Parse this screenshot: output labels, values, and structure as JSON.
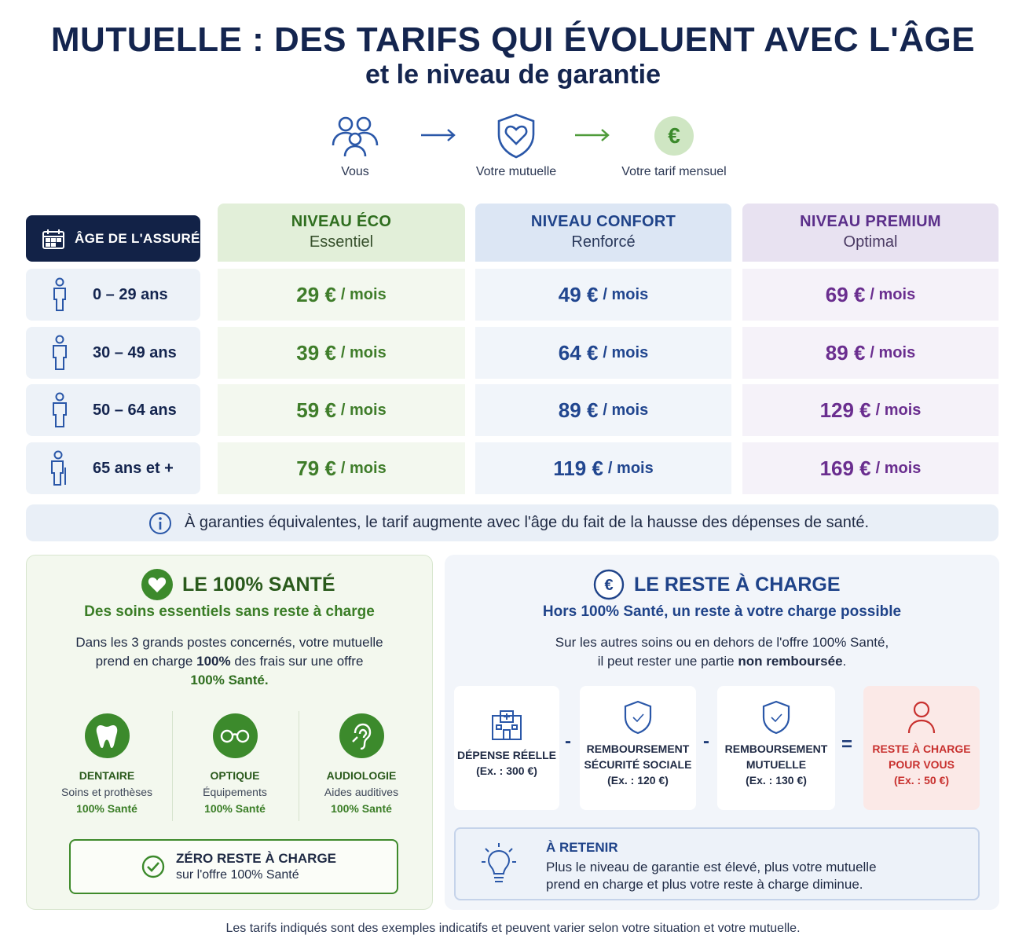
{
  "title": "MUTUELLE : DES TARIFS QUI ÉVOLUENT AVEC L'ÂGE",
  "subtitle": "et le niveau de garantie",
  "flow": {
    "you": "Vous",
    "mutuelle": "Votre mutuelle",
    "tarif": "Votre tarif mensuel",
    "euro_symbol": "€"
  },
  "table": {
    "age_header": "ÂGE DE L'ASSURÉ",
    "levels": [
      {
        "name": "NIVEAU ÉCO",
        "sub": "Essentiel"
      },
      {
        "name": "NIVEAU CONFORT",
        "sub": "Renforcé"
      },
      {
        "name": "NIVEAU PREMIUM",
        "sub": "Optimal"
      }
    ],
    "unit": "/ mois",
    "rows": [
      {
        "age": "0 – 29 ans",
        "eco": "29 €",
        "confort": "49 €",
        "premium": "69 €"
      },
      {
        "age": "30 – 49 ans",
        "eco": "39 €",
        "confort": "64 €",
        "premium": "89 €"
      },
      {
        "age": "50 – 64 ans",
        "eco": "59 €",
        "confort": "89 €",
        "premium": "129 €"
      },
      {
        "age": "65 ans et +",
        "eco": "79 €",
        "confort": "119 €",
        "premium": "169 €"
      }
    ]
  },
  "info_note": "À garanties équivalentes, le tarif augmente avec l'âge du fait de la hausse des dépenses de santé.",
  "sante": {
    "title": "LE 100% SANTÉ",
    "subtitle": "Des soins essentiels sans reste à charge",
    "text_1": "Dans les 3 grands postes concernés, votre mutuelle",
    "text_2a": "prend en charge ",
    "text_2b": "100%",
    "text_2c": " des frais sur une offre",
    "text_3": "100% Santé.",
    "items": [
      {
        "title": "DENTAIRE",
        "desc": "Soins et prothèses",
        "tag": "100% Santé"
      },
      {
        "title": "OPTIQUE",
        "desc": "Équipements",
        "tag": "100% Santé"
      },
      {
        "title": "AUDIOLOGIE",
        "desc": "Aides auditives",
        "tag": "100% Santé"
      }
    ],
    "zero_title": "ZÉRO RESTE À CHARGE",
    "zero_sub": "sur l'offre 100% Santé"
  },
  "reste": {
    "title": "LE RESTE À CHARGE",
    "subtitle": "Hors 100% Santé, un reste à votre charge possible",
    "text_1": "Sur les autres soins ou en dehors de l'offre 100% Santé,",
    "text_2a": "il peut rester une partie ",
    "text_2b": "non remboursée",
    "text_2c": ".",
    "eq": [
      {
        "l1": "DÉPENSE RÉELLE",
        "l2": "(Ex. : 300 €)"
      },
      {
        "l1": "REMBOURSEMENT",
        "l2": "SÉCURITÉ SOCIALE",
        "l3": "(Ex. : 120 €)"
      },
      {
        "l1": "REMBOURSEMENT",
        "l2": "MUTUELLE",
        "l3": "(Ex. : 130 €)"
      },
      {
        "l1": "RESTE À CHARGE",
        "l2": "POUR VOUS",
        "l3": "(Ex. : 50 €)"
      }
    ],
    "op_minus": "-",
    "op_equals": "=",
    "retenir_title": "À RETENIR",
    "retenir_line1": "Plus le niveau de garantie est élevé, plus votre mutuelle",
    "retenir_line2": "prend en charge et plus votre reste à charge diminue."
  },
  "footer": "Les tarifs indiqués sont des exemples indicatifs et peuvent varier selon votre situation et votre mutuelle.",
  "colors": {
    "navy": "#14254f",
    "eco_green": "#3f7d2a",
    "confort_blue": "#21468f",
    "premium_purple": "#6a2e8f",
    "alert_red": "#c8312f"
  }
}
